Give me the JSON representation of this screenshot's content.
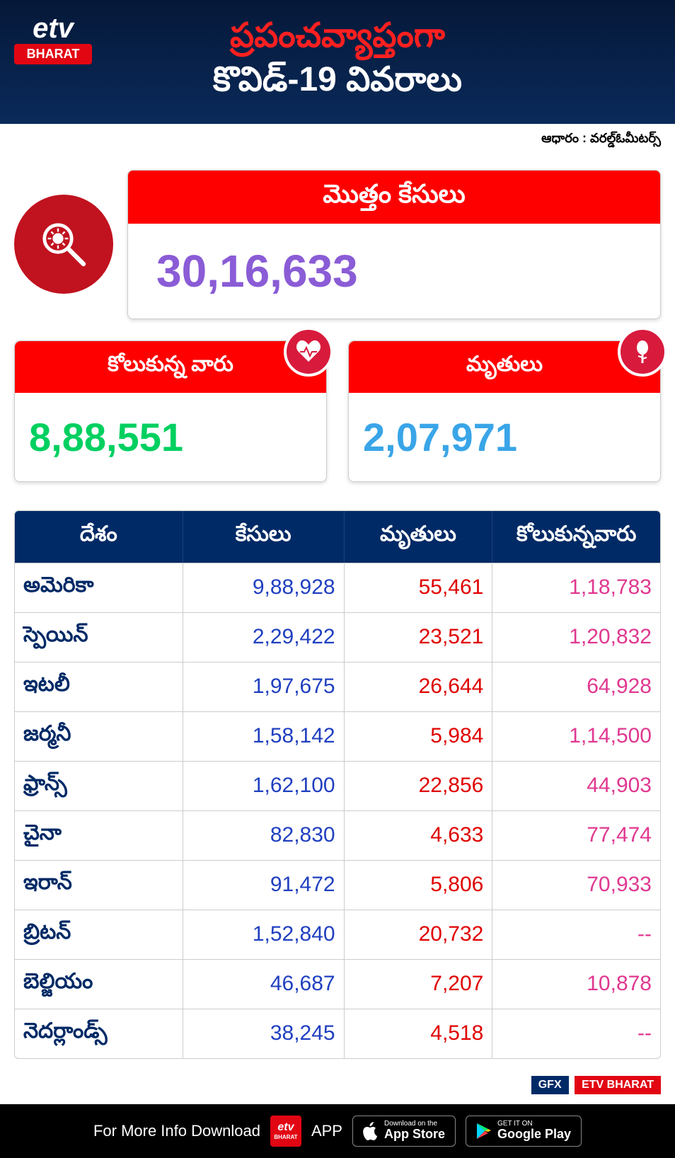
{
  "logo": {
    "top": "etv",
    "bottom": "BHARAT"
  },
  "title": {
    "line1": "ప్రపంచవ్యాప్తంగా",
    "line2": "కొవిడ్-19 వివరాలు"
  },
  "source": "ఆధారం : వరల్డ్​ఓమీటర్స్",
  "total": {
    "label": "మొత్తం కేసులు",
    "value": "30,16,633",
    "color": "#8a5cd6"
  },
  "recovered": {
    "label": "కోలుకున్న వారు",
    "value": "8,88,551",
    "color": "#00d060"
  },
  "deaths": {
    "label": "మృతులు",
    "value": "2,07,971",
    "color": "#39a5e8"
  },
  "table": {
    "headers": {
      "country": "దేశం",
      "cases": "కేసులు",
      "deaths": "మృతులు",
      "recovered": "కోలుకున్నవారు"
    },
    "rows": [
      {
        "country": "అమెరికా",
        "cases": "9,88,928",
        "deaths": "55,461",
        "recovered": "1,18,783"
      },
      {
        "country": "స్పెయిన్",
        "cases": "2,29,422",
        "deaths": "23,521",
        "recovered": "1,20,832"
      },
      {
        "country": "ఇటలీ",
        "cases": "1,97,675",
        "deaths": "26,644",
        "recovered": "64,928"
      },
      {
        "country": "జర్మనీ",
        "cases": "1,58,142",
        "deaths": "5,984",
        "recovered": "1,14,500"
      },
      {
        "country": "ఫ్రాన్స్",
        "cases": "1,62,100",
        "deaths": "22,856",
        "recovered": "44,903"
      },
      {
        "country": "చైనా",
        "cases": "82,830",
        "deaths": "4,633",
        "recovered": "77,474"
      },
      {
        "country": "ఇరాన్",
        "cases": "91,472",
        "deaths": "5,806",
        "recovered": "70,933"
      },
      {
        "country": "బ్రిటన్",
        "cases": "1,52,840",
        "deaths": "20,732",
        "recovered": "--"
      },
      {
        "country": "బెల్జియం",
        "cases": "46,687",
        "deaths": "7,207",
        "recovered": "10,878"
      },
      {
        "country": "నెదర్లాండ్స్",
        "cases": "38,245",
        "deaths": "4,518",
        "recovered": "--"
      }
    ],
    "colors": {
      "header_bg": "#002a66",
      "country": "#002a66",
      "cases": "#2040c0",
      "deaths": "#e00000",
      "recovered": "#e03890"
    }
  },
  "gfx": {
    "label": "GFX",
    "brand": "ETV BHARAT"
  },
  "footer": {
    "text_before": "For More Info Download",
    "text_after": "APP",
    "appstore": {
      "small": "Download on the",
      "big": "App Store"
    },
    "playstore": {
      "small": "GET IT ON",
      "big": "Google Play"
    }
  }
}
